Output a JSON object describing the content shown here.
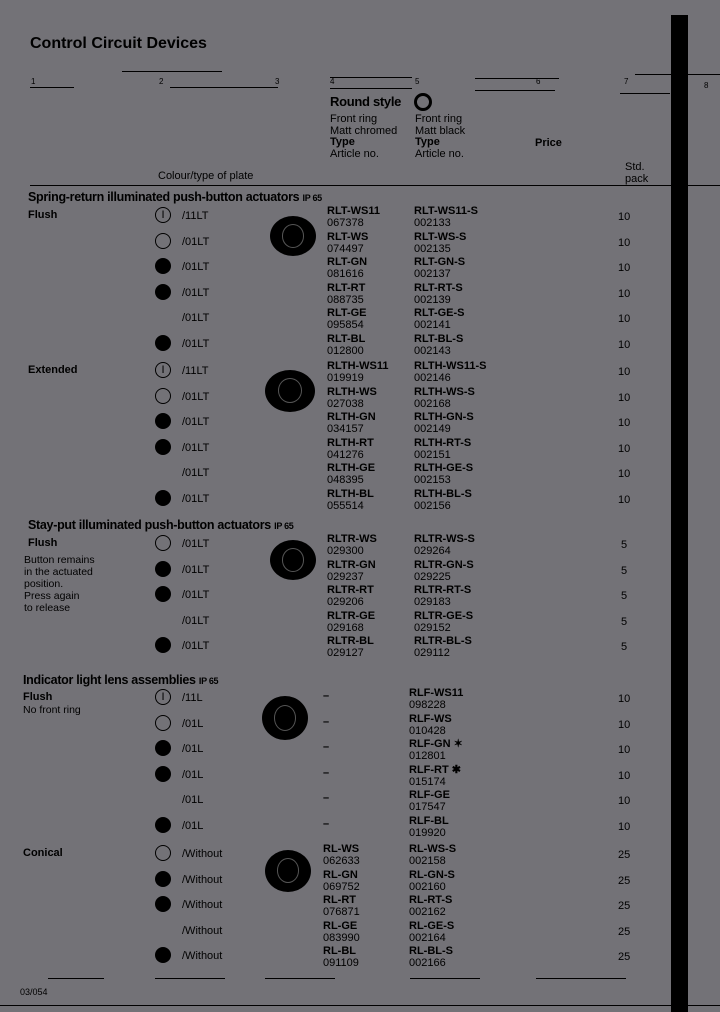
{
  "page_title": "Control Circuit Devices",
  "column_numbers": [
    "1",
    "2",
    "3",
    "4",
    "5",
    "6",
    "7",
    "8"
  ],
  "header": {
    "round_style": "Round style",
    "col4": {
      "line1": "Front ring",
      "line2": "Matt chromed",
      "type": "Type",
      "article": "Article no."
    },
    "col5": {
      "line1": "Front ring",
      "line2": "Matt black",
      "type": "Type",
      "article": "Article no."
    },
    "price": "Price",
    "plate": "Colour/type of plate",
    "std_pack": "Std.",
    "std_pack2": "pack"
  },
  "sections": [
    {
      "title": "Spring-return illuminated push-button actuators",
      "ip": "IP 65",
      "groups": [
        {
          "label": "Flush",
          "note": "",
          "rows": [
            {
              "swatch": "i",
              "plate": "/11LT",
              "t1": "RLT-WS11",
              "a1": "067378",
              "t2": "RLT-WS11-S",
              "a2": "002133",
              "pack": "10"
            },
            {
              "swatch": "open",
              "plate": "/01LT",
              "t1": "RLT-WS",
              "a1": "074497",
              "t2": "RLT-WS-S",
              "a2": "002135",
              "pack": "10"
            },
            {
              "swatch": "filled",
              "plate": "/01LT",
              "t1": "RLT-GN",
              "a1": "081616",
              "t2": "RLT-GN-S",
              "a2": "002137",
              "pack": "10"
            },
            {
              "swatch": "filled",
              "plate": "/01LT",
              "t1": "RLT-RT",
              "a1": "088735",
              "t2": "RLT-RT-S",
              "a2": "002139",
              "pack": "10"
            },
            {
              "swatch": "none",
              "plate": "/01LT",
              "t1": "RLT-GE",
              "a1": "095854",
              "t2": "RLT-GE-S",
              "a2": "002141",
              "pack": "10"
            },
            {
              "swatch": "filled",
              "plate": "/01LT",
              "t1": "RLT-BL",
              "a1": "012800",
              "t2": "RLT-BL-S",
              "a2": "002143",
              "pack": "10"
            }
          ]
        },
        {
          "label": "Extended",
          "note": "",
          "rows": [
            {
              "swatch": "i",
              "plate": "/11LT",
              "t1": "RLTH-WS11",
              "a1": "019919",
              "t2": "RLTH-WS11-S",
              "a2": "002146",
              "pack": "10"
            },
            {
              "swatch": "open",
              "plate": "/01LT",
              "t1": "RLTH-WS",
              "a1": "027038",
              "t2": "RLTH-WS-S",
              "a2": "002168",
              "pack": "10"
            },
            {
              "swatch": "filled",
              "plate": "/01LT",
              "t1": "RLTH-GN",
              "a1": "034157",
              "t2": "RLTH-GN-S",
              "a2": "002149",
              "pack": "10"
            },
            {
              "swatch": "filled",
              "plate": "/01LT",
              "t1": "RLTH-RT",
              "a1": "041276",
              "t2": "RLTH-RT-S",
              "a2": "002151",
              "pack": "10"
            },
            {
              "swatch": "none",
              "plate": "/01LT",
              "t1": "RLTH-GE",
              "a1": "048395",
              "t2": "RLTH-GE-S",
              "a2": "002153",
              "pack": "10"
            },
            {
              "swatch": "filled",
              "plate": "/01LT",
              "t1": "RLTH-BL",
              "a1": "055514",
              "t2": "RLTH-BL-S",
              "a2": "002156",
              "pack": "10"
            }
          ]
        }
      ]
    },
    {
      "title": "Stay-put illuminated push-button actuators",
      "ip": "IP 65",
      "groups": [
        {
          "label": "Flush",
          "note": "Button remains\nin the actuated\nposition.\nPress again\nto release",
          "rows": [
            {
              "swatch": "open",
              "plate": "/01LT",
              "t1": "RLTR-WS",
              "a1": "029300",
              "t2": "RLTR-WS-S",
              "a2": "029264",
              "pack": "5"
            },
            {
              "swatch": "filled",
              "plate": "/01LT",
              "t1": "RLTR-GN",
              "a1": "029237",
              "t2": "RLTR-GN-S",
              "a2": "029225",
              "pack": "5"
            },
            {
              "swatch": "filled",
              "plate": "/01LT",
              "t1": "RLTR-RT",
              "a1": "029206",
              "t2": "RLTR-RT-S",
              "a2": "029183",
              "pack": "5"
            },
            {
              "swatch": "none",
              "plate": "/01LT",
              "t1": "RLTR-GE",
              "a1": "029168",
              "t2": "RLTR-GE-S",
              "a2": "029152",
              "pack": "5"
            },
            {
              "swatch": "filled",
              "plate": "/01LT",
              "t1": "RLTR-BL",
              "a1": "029127",
              "t2": "RLTR-BL-S",
              "a2": "029112",
              "pack": "5"
            }
          ]
        }
      ]
    },
    {
      "title": "Indicator light lens assemblies",
      "ip": "IP 65",
      "groups": [
        {
          "label": "Flush",
          "note": "No front ring",
          "rows": [
            {
              "swatch": "i",
              "plate": "/11L",
              "t1": "–",
              "a1": "",
              "t2": "RLF-WS11",
              "a2": "098228",
              "pack": "10"
            },
            {
              "swatch": "open",
              "plate": "/01L",
              "t1": "–",
              "a1": "",
              "t2": "RLF-WS",
              "a2": "010428",
              "pack": "10"
            },
            {
              "swatch": "filled",
              "plate": "/01L",
              "t1": "–",
              "a1": "",
              "t2": "RLF-GN ✶",
              "a2": "012801",
              "pack": "10"
            },
            {
              "swatch": "filled",
              "plate": "/01L",
              "t1": "–",
              "a1": "",
              "t2": "RLF-RT ✱",
              "a2": "015174",
              "pack": "10"
            },
            {
              "swatch": "none",
              "plate": "/01L",
              "t1": "–",
              "a1": "",
              "t2": "RLF-GE",
              "a2": "017547",
              "pack": "10"
            },
            {
              "swatch": "filled",
              "plate": "/01L",
              "t1": "–",
              "a1": "",
              "t2": "RLF-BL",
              "a2": "019920",
              "pack": "10"
            }
          ]
        },
        {
          "label": "Conical",
          "note": "",
          "rows": [
            {
              "swatch": "open",
              "plate": "/Without",
              "t1": "RL-WS",
              "a1": "062633",
              "t2": "RL-WS-S",
              "a2": "002158",
              "pack": "25"
            },
            {
              "swatch": "filled",
              "plate": "/Without",
              "t1": "RL-GN",
              "a1": "069752",
              "t2": "RL-GN-S",
              "a2": "002160",
              "pack": "25"
            },
            {
              "swatch": "filled",
              "plate": "/Without",
              "t1": "RL-RT",
              "a1": "076871",
              "t2": "RL-RT-S",
              "a2": "002162",
              "pack": "25"
            },
            {
              "swatch": "none",
              "plate": "/Without",
              "t1": "RL-GE",
              "a1": "083990",
              "t2": "RL-GE-S",
              "a2": "002164",
              "pack": "25"
            },
            {
              "swatch": "filled",
              "plate": "/Without",
              "t1": "RL-BL",
              "a1": "091109",
              "t2": "RL-BL-S",
              "a2": "002166",
              "pack": "25"
            }
          ]
        }
      ]
    }
  ],
  "page_number": "03/054"
}
